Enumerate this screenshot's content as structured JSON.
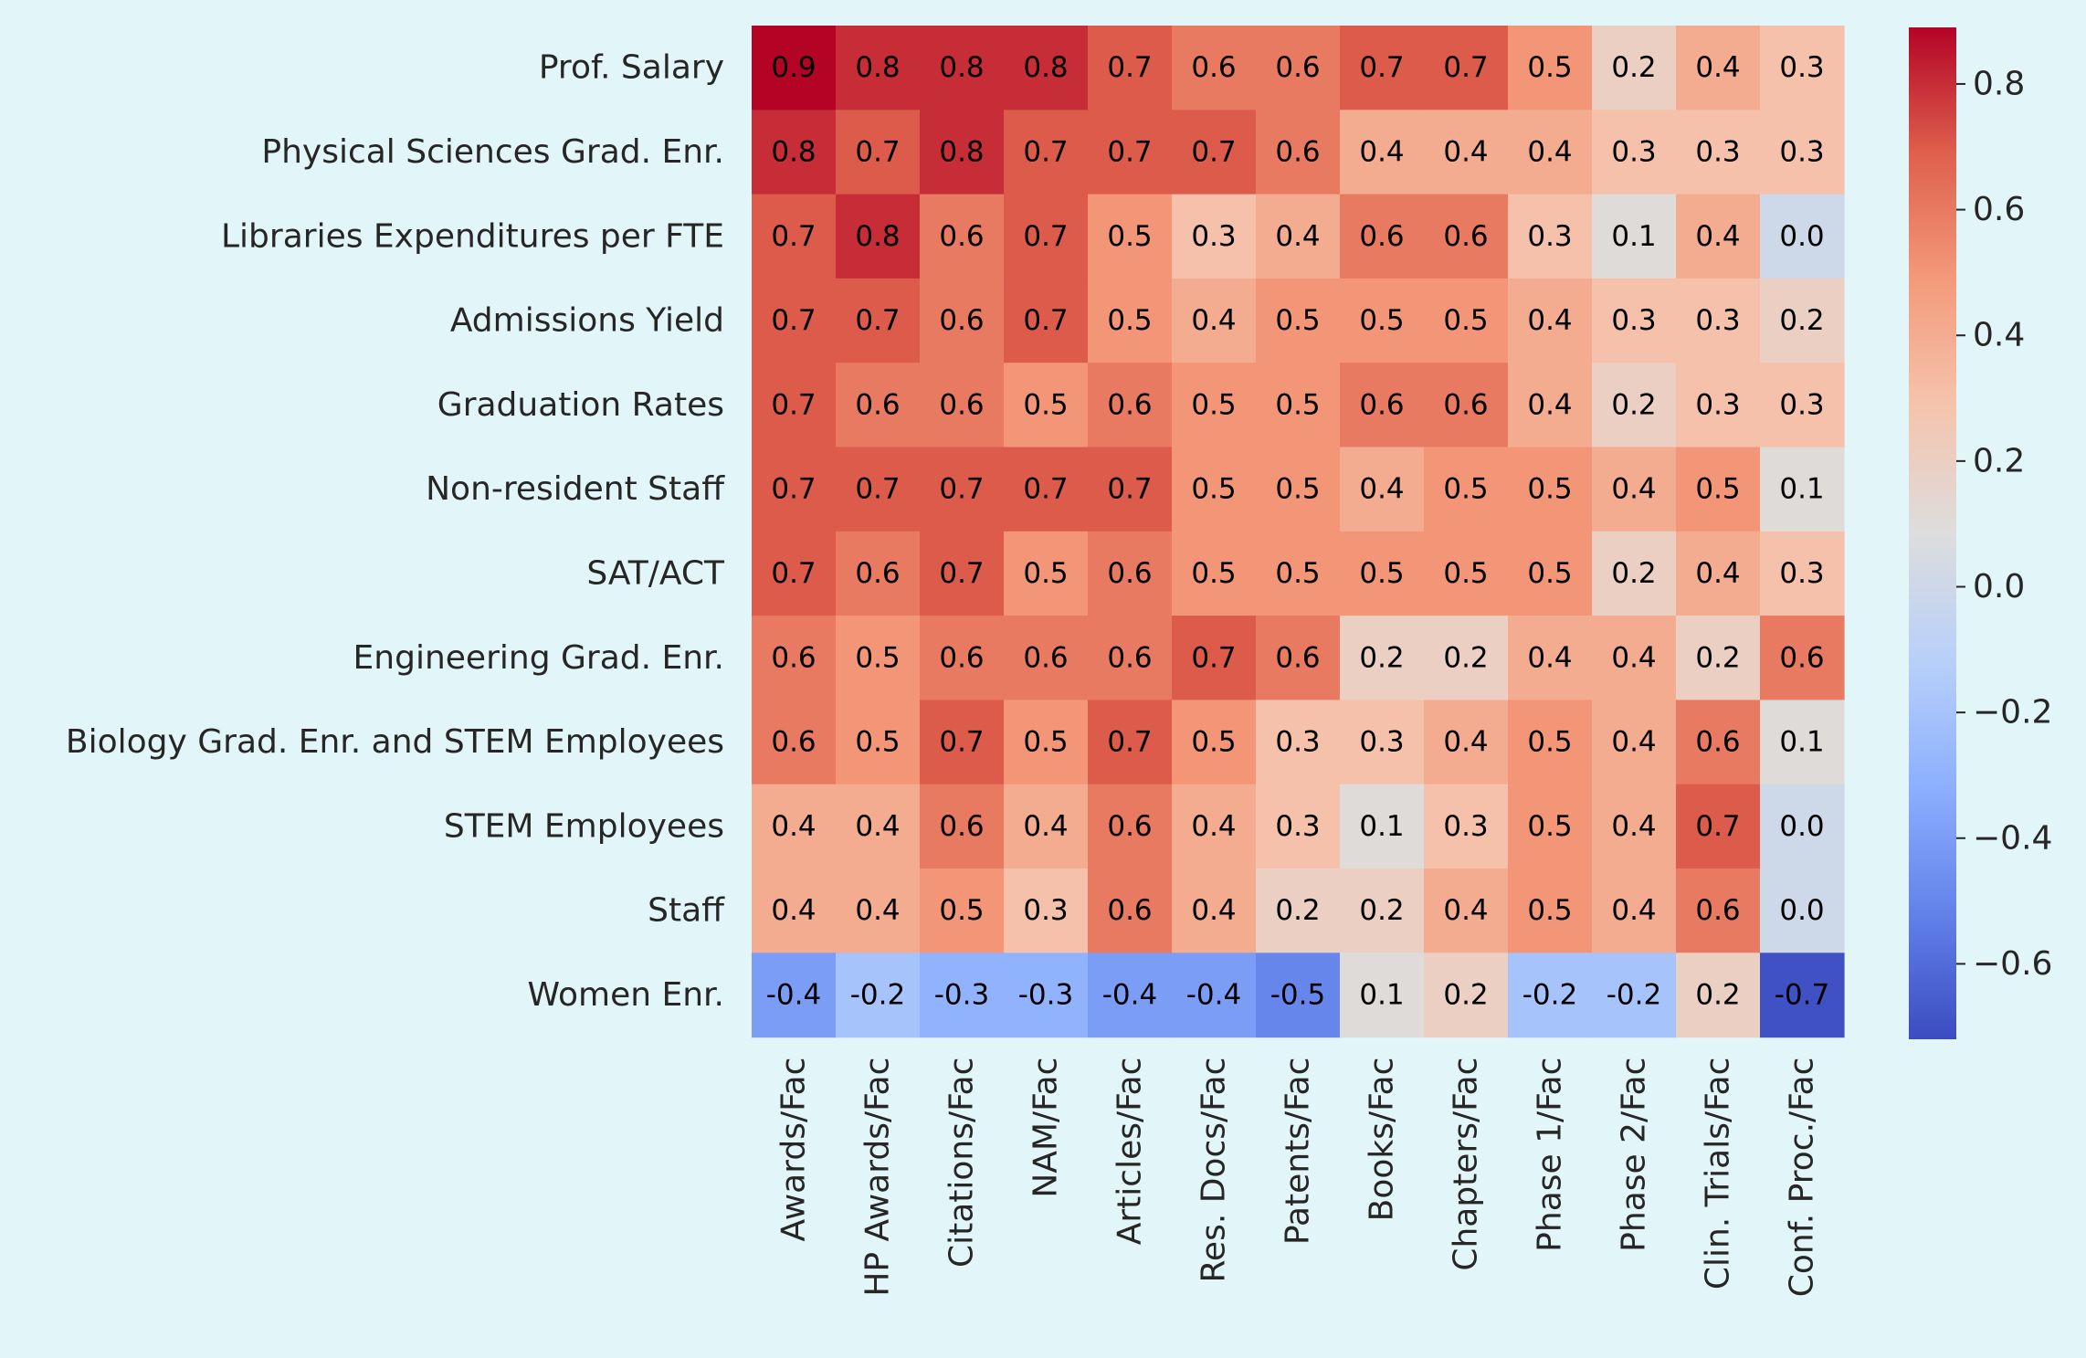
{
  "chart_data": {
    "type": "heatmap",
    "title": "",
    "xlabel": "",
    "ylabel": "",
    "rows": [
      "Prof. Salary",
      "Physical Sciences Grad. Enr.",
      "Libraries Expenditures per FTE",
      "Admissions Yield",
      "Graduation Rates",
      "Non-resident Staff",
      "SAT/ACT",
      "Engineering Grad. Enr.",
      "Biology Grad. Enr. and STEM Employees",
      "STEM Employees",
      "Staff",
      "Women Enr."
    ],
    "columns": [
      "Awards/Fac",
      "HP Awards/Fac",
      "Citations/Fac",
      "NAM/Fac",
      "Articles/Fac",
      "Res. Docs/Fac",
      "Patents/Fac",
      "Books/Fac",
      "Chapters/Fac",
      "Phase 1/Fac",
      "Phase 2/Fac",
      "Clin. Trials/Fac",
      "Conf. Proc./Fac"
    ],
    "values": [
      [
        0.9,
        0.8,
        0.8,
        0.8,
        0.7,
        0.6,
        0.6,
        0.7,
        0.7,
        0.5,
        0.2,
        0.4,
        0.3
      ],
      [
        0.8,
        0.7,
        0.8,
        0.7,
        0.7,
        0.7,
        0.6,
        0.4,
        0.4,
        0.4,
        0.3,
        0.3,
        0.3
      ],
      [
        0.7,
        0.8,
        0.6,
        0.7,
        0.5,
        0.3,
        0.4,
        0.6,
        0.6,
        0.3,
        0.1,
        0.4,
        0.0
      ],
      [
        0.7,
        0.7,
        0.6,
        0.7,
        0.5,
        0.4,
        0.5,
        0.5,
        0.5,
        0.4,
        0.3,
        0.3,
        0.2
      ],
      [
        0.7,
        0.6,
        0.6,
        0.5,
        0.6,
        0.5,
        0.5,
        0.6,
        0.6,
        0.4,
        0.2,
        0.3,
        0.3
      ],
      [
        0.7,
        0.7,
        0.7,
        0.7,
        0.7,
        0.5,
        0.5,
        0.4,
        0.5,
        0.5,
        0.4,
        0.5,
        0.1
      ],
      [
        0.7,
        0.6,
        0.7,
        0.5,
        0.6,
        0.5,
        0.5,
        0.5,
        0.5,
        0.5,
        0.2,
        0.4,
        0.3
      ],
      [
        0.6,
        0.5,
        0.6,
        0.6,
        0.6,
        0.7,
        0.6,
        0.2,
        0.2,
        0.4,
        0.4,
        0.2,
        0.6
      ],
      [
        0.6,
        0.5,
        0.7,
        0.5,
        0.7,
        0.5,
        0.3,
        0.3,
        0.4,
        0.5,
        0.4,
        0.6,
        0.1
      ],
      [
        0.4,
        0.4,
        0.6,
        0.4,
        0.6,
        0.4,
        0.3,
        0.1,
        0.3,
        0.5,
        0.4,
        0.7,
        0.0
      ],
      [
        0.4,
        0.4,
        0.5,
        0.3,
        0.6,
        0.4,
        0.2,
        0.2,
        0.4,
        0.5,
        0.4,
        0.6,
        0.0
      ],
      [
        -0.4,
        -0.2,
        -0.3,
        -0.3,
        -0.4,
        -0.4,
        -0.5,
        0.1,
        0.2,
        -0.2,
        -0.2,
        0.2,
        -0.7
      ]
    ],
    "colormap": "coolwarm",
    "vmin": -0.72,
    "vmax": 0.89,
    "colorbar_ticks": [
      0.8,
      0.6,
      0.4,
      0.2,
      0.0,
      -0.2,
      -0.4,
      -0.6
    ],
    "colorbar_tick_labels": [
      "0.8",
      "0.6",
      "0.4",
      "0.2",
      "0.0",
      "−0.2",
      "−0.4",
      "−0.6"
    ],
    "annotations": true,
    "grid": false,
    "legend": "colorbar-right"
  },
  "colors": {
    "background": "#e2f5f8",
    "text": "#262626",
    "cold": "#3b4cc0",
    "neutral": "#dddddd",
    "warm": "#b40426"
  }
}
